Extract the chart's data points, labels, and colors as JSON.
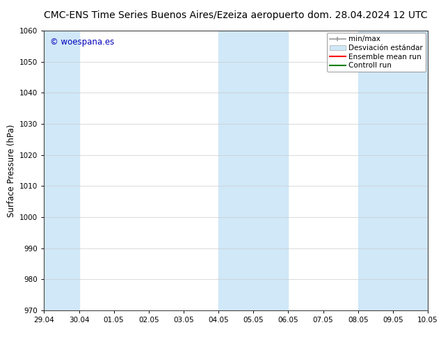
{
  "title_left": "CMC-ENS Time Series Buenos Aires/Ezeiza aeropuerto",
  "title_right": "dom. 28.04.2024 12 UTC",
  "ylabel": "Surface Pressure (hPa)",
  "ylim": [
    970,
    1060
  ],
  "yticks": [
    970,
    980,
    990,
    1000,
    1010,
    1020,
    1030,
    1040,
    1050,
    1060
  ],
  "xtick_labels": [
    "29.04",
    "30.04",
    "01.05",
    "02.05",
    "03.05",
    "04.05",
    "05.05",
    "06.05",
    "07.05",
    "08.05",
    "09.05",
    "10.05"
  ],
  "watermark": "© woespana.es",
  "watermark_color": "#0000bb",
  "background_color": "#ffffff",
  "plot_bg_color": "#ffffff",
  "shaded_color": "#d0e8f8",
  "shaded_regions": [
    {
      "xstart": 0,
      "xend": 1
    },
    {
      "xstart": 5,
      "xend": 7
    },
    {
      "xstart": 9,
      "xend": 11
    }
  ],
  "legend_entries": [
    {
      "label": "min/max",
      "color": "#aaaaaa",
      "lw": 1.5
    },
    {
      "label": "Desviación estándar",
      "color": "#c8dff0",
      "lw": 8
    },
    {
      "label": "Ensemble mean run",
      "color": "#ff0000",
      "lw": 1.5
    },
    {
      "label": "Controll run",
      "color": "#008000",
      "lw": 1.5
    }
  ],
  "title_fontsize": 10,
  "tick_fontsize": 7.5,
  "ylabel_fontsize": 8.5,
  "legend_fontsize": 7.5
}
